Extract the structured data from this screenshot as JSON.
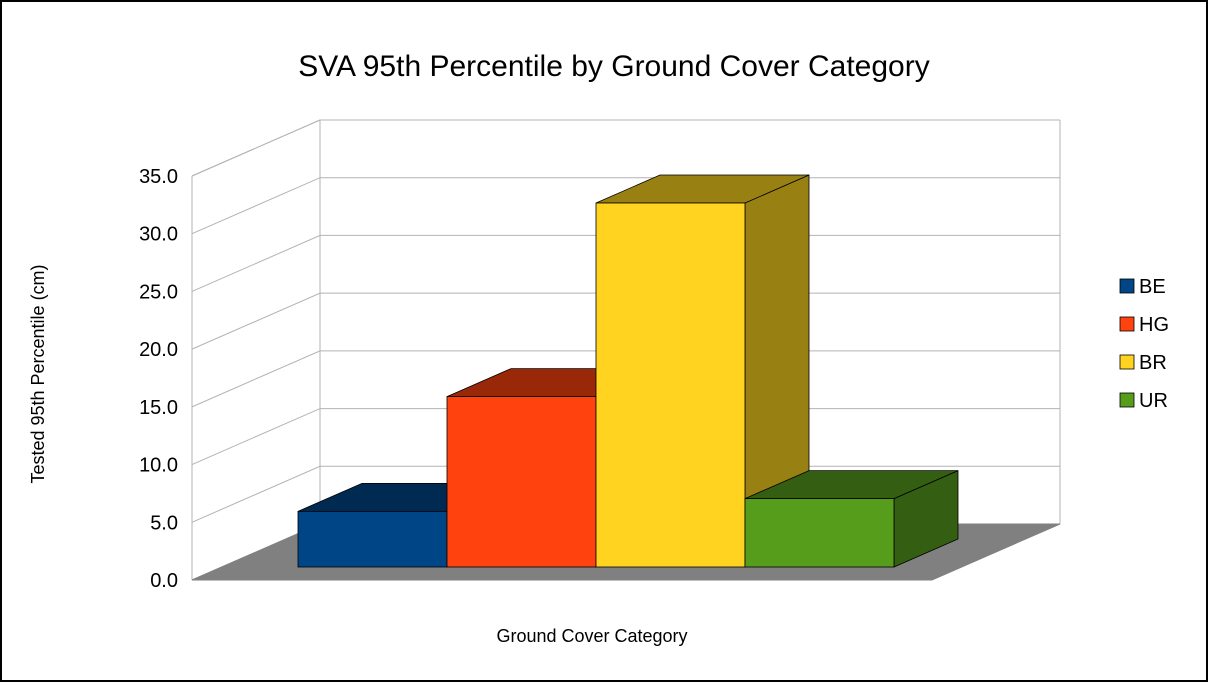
{
  "chart_data": {
    "type": "bar",
    "style": "3d",
    "title": "SVA 95th Percentile by Ground Cover Category",
    "xlabel": "Ground Cover Category",
    "ylabel": "Tested 95th Percentile (cm)",
    "ylim": [
      0,
      35
    ],
    "yticks": [
      "0.0",
      "5.0",
      "10.0",
      "15.0",
      "20.0",
      "25.0",
      "30.0",
      "35.0"
    ],
    "grid": true,
    "legend_position": "right",
    "categories": [
      "BE",
      "HG",
      "BR",
      "UR"
    ],
    "series": [
      {
        "name": "BE",
        "value": 4.8,
        "color": "#004586",
        "top_color": "#002a51",
        "side_color": "#002a51"
      },
      {
        "name": "HG",
        "value": 14.7,
        "color": "#ff420e",
        "top_color": "#992808",
        "side_color": "#992808"
      },
      {
        "name": "BR",
        "value": 31.4,
        "color": "#ffd320",
        "top_color": "#998013",
        "side_color": "#998013"
      },
      {
        "name": "UR",
        "value": 5.9,
        "color": "#579d1c",
        "top_color": "#345e11",
        "side_color": "#345e11"
      }
    ]
  }
}
